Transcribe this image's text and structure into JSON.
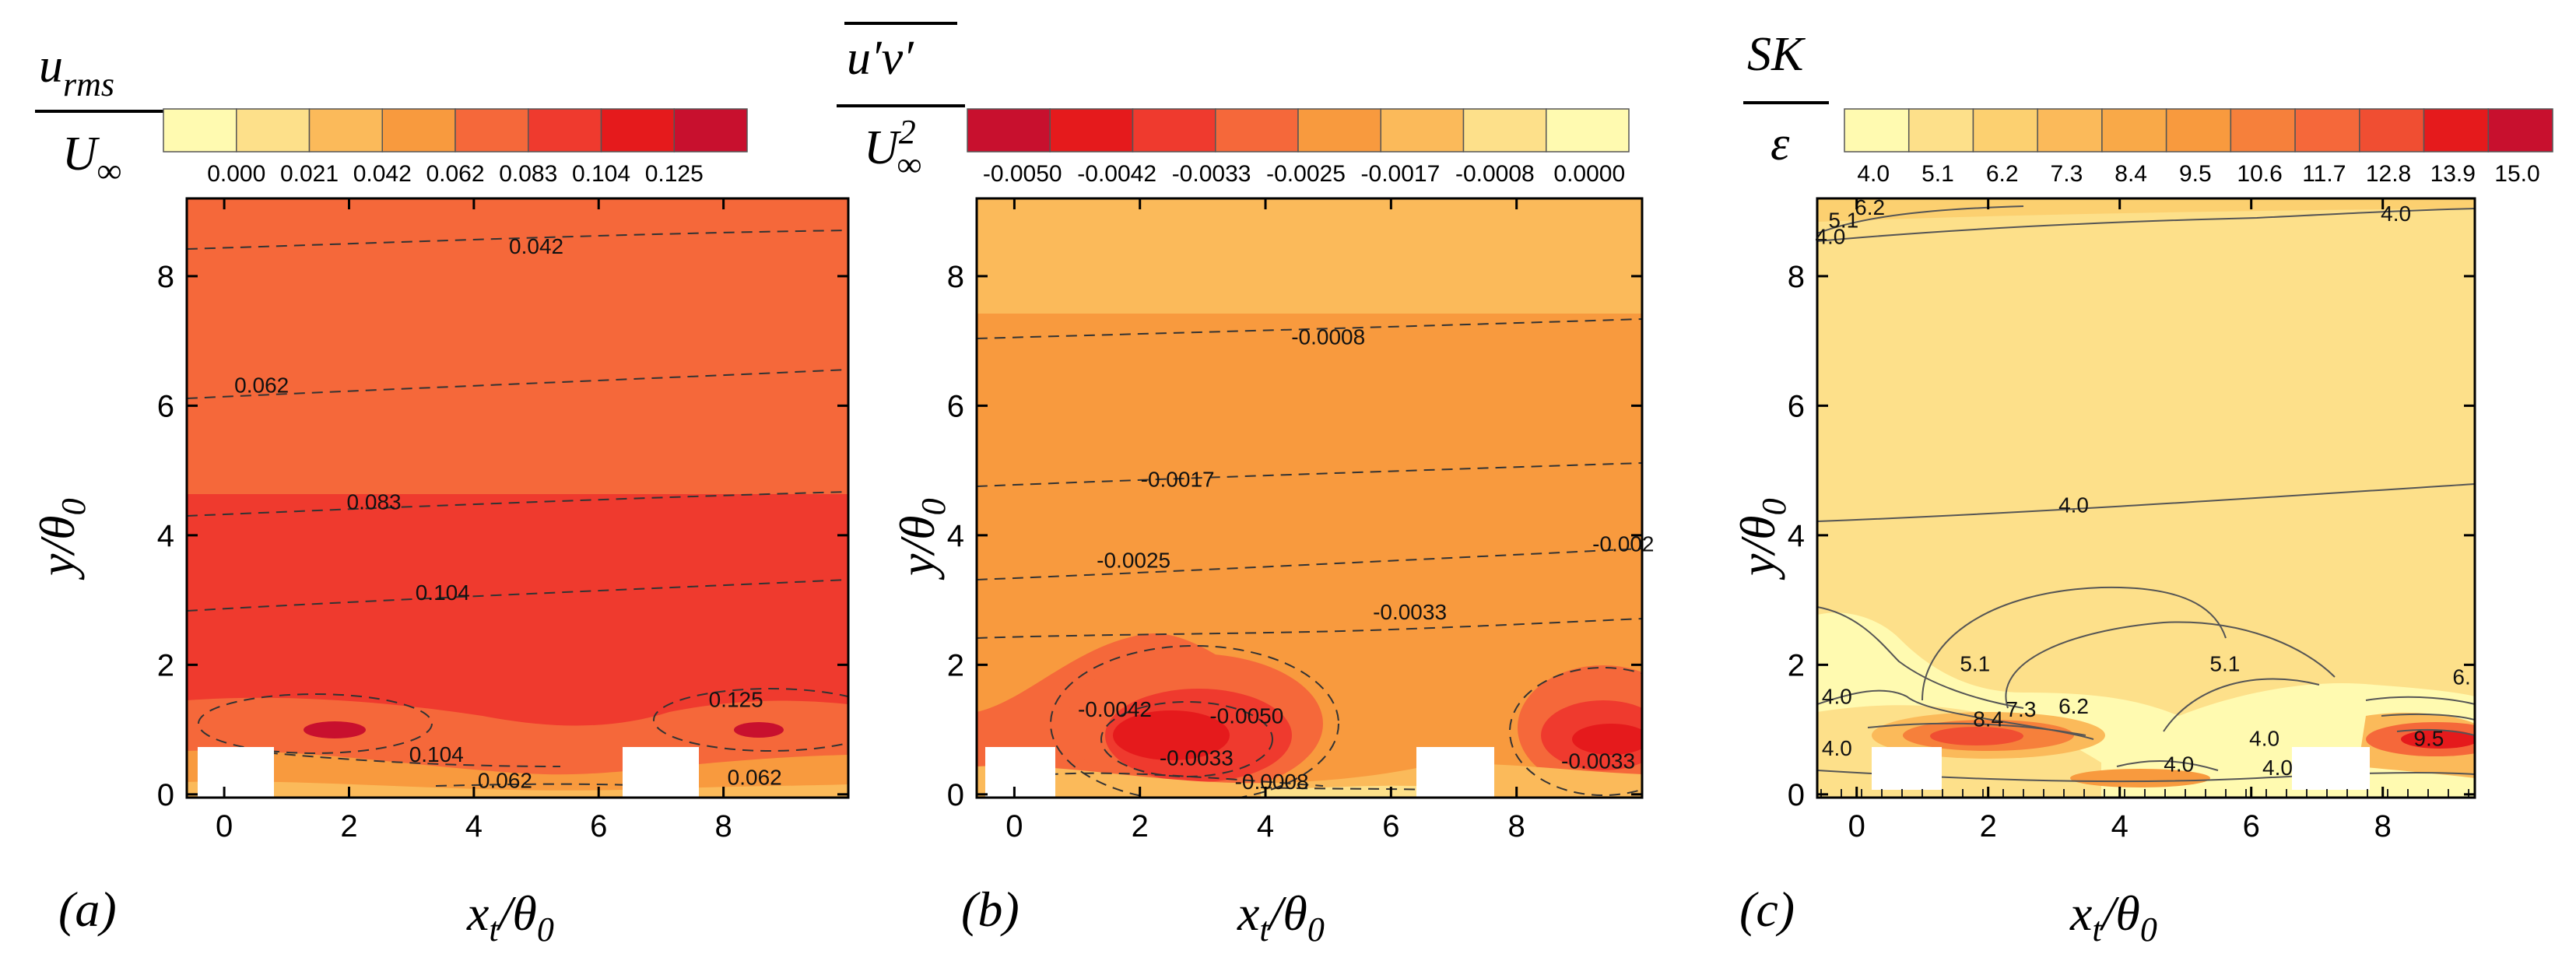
{
  "chart_data": [
    {
      "id": "a",
      "type": "heatmap",
      "panel_label": "(a)",
      "colorbar_label_num": "u",
      "colorbar_label_num_sub": "rms",
      "colorbar_label_den": "U",
      "colorbar_label_den_sub": "∞",
      "colorbar_ticks": [
        "0.000",
        "0.021",
        "0.042",
        "0.062",
        "0.083",
        "0.104",
        "0.125"
      ],
      "colorbar_colors": [
        "#fffab0",
        "#fde08a",
        "#fbba5a",
        "#f89a3e",
        "#f5683a",
        "#ef3a2e",
        "#e51a1c",
        "#c8102e"
      ],
      "xlabel_main": "x",
      "xlabel_sub": "t",
      "xlabel_den": "θ",
      "xlabel_den_sub": "0",
      "ylabel_main": "y",
      "ylabel_den": "θ",
      "ylabel_den_sub": "0",
      "x_range": [
        -0.6,
        10
      ],
      "y_range": [
        -0.05,
        9.2
      ],
      "x_ticks": [
        "0",
        "2",
        "4",
        "6",
        "8"
      ],
      "y_ticks": [
        "0",
        "2",
        "4",
        "6",
        "8"
      ],
      "contour_labels": [
        {
          "text": "0.042",
          "x": 5.0,
          "y": 8.35
        },
        {
          "text": "0.062",
          "x": 0.6,
          "y": 6.2
        },
        {
          "text": "0.083",
          "x": 2.4,
          "y": 4.4
        },
        {
          "text": "0.104",
          "x": 3.5,
          "y": 3.0
        },
        {
          "text": "0.125",
          "x": 8.2,
          "y": 1.35
        },
        {
          "text": "0.104",
          "x": 3.4,
          "y": 0.5
        },
        {
          "text": "0.062",
          "x": 4.5,
          "y": 0.1
        },
        {
          "text": "0.062",
          "x": 8.5,
          "y": 0.15
        }
      ]
    },
    {
      "id": "b",
      "type": "heatmap",
      "panel_label": "(b)",
      "colorbar_label_num": "u′v′",
      "colorbar_label_den": "U",
      "colorbar_label_den_sub": "∞",
      "colorbar_label_den_sup": "2",
      "colorbar_ticks": [
        "-0.0050",
        "-0.0042",
        "-0.0033",
        "-0.0025",
        "-0.0017",
        "-0.0008",
        "0.0000"
      ],
      "colorbar_colors": [
        "#c8102e",
        "#e51a1c",
        "#ef3a2e",
        "#f5683a",
        "#f89a3e",
        "#fbba5a",
        "#fde08a",
        "#fffab0"
      ],
      "xlabel_main": "x",
      "xlabel_sub": "t",
      "xlabel_den": "θ",
      "xlabel_den_sub": "0",
      "ylabel_main": "y",
      "ylabel_den": "θ",
      "ylabel_den_sub": "0",
      "x_range": [
        -0.6,
        10
      ],
      "y_range": [
        -0.05,
        9.2
      ],
      "x_ticks": [
        "0",
        "2",
        "4",
        "6",
        "8"
      ],
      "y_ticks": [
        "0",
        "2",
        "4",
        "6",
        "8"
      ],
      "contour_labels": [
        {
          "text": "-0.0008",
          "x": 5.0,
          "y": 6.95
        },
        {
          "text": "-0.0017",
          "x": 2.6,
          "y": 4.75
        },
        {
          "text": "-0.0025",
          "x": 1.9,
          "y": 3.5
        },
        {
          "text": "-0.0033",
          "x": 6.3,
          "y": 2.7
        },
        {
          "text": "-0.002",
          "x": 9.7,
          "y": 3.75
        },
        {
          "text": "-0.0042",
          "x": 1.6,
          "y": 1.2
        },
        {
          "text": "-0.0050",
          "x": 3.7,
          "y": 1.1
        },
        {
          "text": "-0.0033",
          "x": 2.9,
          "y": 0.45
        },
        {
          "text": "-0.0008",
          "x": 4.1,
          "y": 0.08
        },
        {
          "text": "-0.0033",
          "x": 9.3,
          "y": 0.4
        }
      ]
    },
    {
      "id": "c",
      "type": "heatmap",
      "panel_label": "(c)",
      "colorbar_label_num": "SK",
      "colorbar_label_den": "ε",
      "colorbar_ticks": [
        "4.0",
        "5.1",
        "6.2",
        "7.3",
        "8.4",
        "9.5",
        "10.6",
        "11.7",
        "12.8",
        "13.9",
        "15.0"
      ],
      "colorbar_colors": [
        "#fffab0",
        "#fde08a",
        "#fcd070",
        "#fbba5a",
        "#f9a948",
        "#f89a3e",
        "#f6803b",
        "#f5683a",
        "#f04e32",
        "#e51a1c",
        "#c8102e"
      ],
      "xlabel_main": "x",
      "xlabel_sub": "t",
      "xlabel_den": "θ",
      "xlabel_den_sub": "0",
      "ylabel_main": "y",
      "ylabel_den": "θ",
      "ylabel_den_sub": "0",
      "x_range": [
        -0.6,
        9.4
      ],
      "y_range": [
        -0.05,
        9.2
      ],
      "x_ticks": [
        "0",
        "2",
        "4",
        "6",
        "8"
      ],
      "y_ticks": [
        "0",
        "2",
        "4",
        "6",
        "8"
      ],
      "contour_labels": [
        {
          "text": "5.1",
          "x": -0.2,
          "y": 8.75
        },
        {
          "text": "6.2",
          "x": 0.2,
          "y": 8.95
        },
        {
          "text": "4.0",
          "x": -0.4,
          "y": 8.5
        },
        {
          "text": "4.0",
          "x": 8.2,
          "y": 8.85
        },
        {
          "text": "4.0",
          "x": 3.3,
          "y": 4.35
        },
        {
          "text": "5.1",
          "x": 1.8,
          "y": 1.9
        },
        {
          "text": "5.1",
          "x": 5.6,
          "y": 1.9
        },
        {
          "text": "4.0",
          "x": -0.3,
          "y": 1.4
        },
        {
          "text": "6.2",
          "x": 3.3,
          "y": 1.25
        },
        {
          "text": "8.4",
          "x": 2.0,
          "y": 1.05
        },
        {
          "text": "7.3",
          "x": 2.5,
          "y": 1.2
        },
        {
          "text": "4.0",
          "x": -0.3,
          "y": 0.6
        },
        {
          "text": "4.0",
          "x": 4.9,
          "y": 0.35
        },
        {
          "text": "4.0",
          "x": 6.2,
          "y": 0.75
        },
        {
          "text": "4.0",
          "x": 6.4,
          "y": 0.3
        },
        {
          "text": "9.5",
          "x": 8.7,
          "y": 0.75
        },
        {
          "text": "6.",
          "x": 9.2,
          "y": 1.7
        }
      ]
    }
  ]
}
